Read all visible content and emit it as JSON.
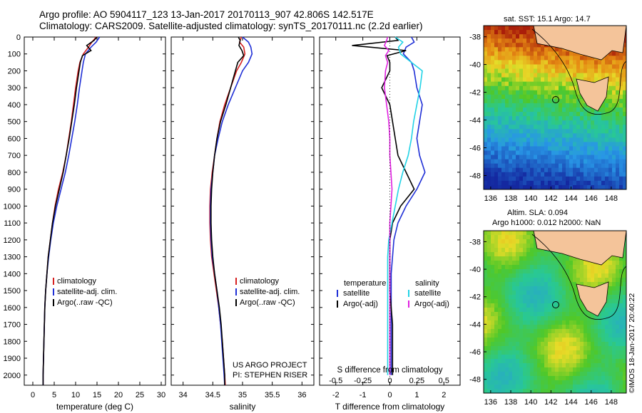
{
  "header": {
    "line1": "Argo profile: AO 5904117_123 13-Jan-2017 20170113_907 42.806S 142.517E",
    "line2": "Climatology: CARS2009. Satellite-adjusted climatology: synTS_20170111.nc (2.2d earlier)"
  },
  "colors": {
    "climatology": "#d62020",
    "satellite": "#1f2fd6",
    "argo": "#000000",
    "sat_salinity": "#22d3e6",
    "argo_salinity": "#e020e0"
  },
  "sst_map": {
    "title": "sat. SST: 15.1 Argo: 14.7"
  },
  "sla_map": {
    "title_line1": "Altim. SLA: 0.094",
    "title_line2": "Argo h1000: 0.012 h2000: NaN"
  },
  "map_axes": {
    "x_ticks": [
      "136",
      "138",
      "140",
      "142",
      "144",
      "146",
      "148"
    ],
    "y_ticks": [
      "-38",
      "-40",
      "-42",
      "-44",
      "-46",
      "-48"
    ]
  },
  "credit": "©IMOS 18-Jan-2017 20:40:22",
  "project": {
    "line1": "US ARGO PROJECT",
    "line2": "PI: STEPHEN RISER"
  },
  "chart_data": [
    {
      "type": "line",
      "xlabel": "temperature (deg C)",
      "xlim": [
        -2,
        31
      ],
      "ylim": [
        2060,
        0
      ],
      "x_ticks": [
        "0",
        "5",
        "10",
        "15",
        "20",
        "25",
        "30"
      ],
      "y_ticks": [
        "0",
        "100",
        "200",
        "300",
        "400",
        "500",
        "600",
        "700",
        "800",
        "900",
        "1000",
        "1100",
        "1200",
        "1300",
        "1400",
        "1500",
        "1600",
        "1700",
        "1800",
        "1900",
        "2000"
      ],
      "legend": [
        "climatology",
        "satellite-adj. clim.",
        "Argo(..raw -QC)"
      ],
      "series": [
        {
          "name": "climatology",
          "depth": [
            0,
            30,
            60,
            100,
            150,
            200,
            300,
            400,
            500,
            600,
            700,
            800,
            900,
            1000,
            1100,
            1200,
            1300,
            1400,
            1500,
            1600,
            1700,
            1800,
            1900,
            2000,
            2060
          ],
          "values": [
            14.8,
            13.8,
            13.0,
            11.8,
            11.0,
            10.6,
            10.0,
            9.5,
            9.0,
            8.4,
            7.8,
            7.0,
            6.0,
            5.2,
            4.6,
            4.1,
            3.6,
            3.3,
            3.0,
            2.8,
            2.7,
            2.6,
            2.5,
            2.4,
            2.4
          ]
        },
        {
          "name": "satellite-adj. clim.",
          "depth": [
            0,
            30,
            60,
            100,
            150,
            200,
            300,
            400,
            500,
            600,
            700,
            800,
            900,
            1000,
            1100,
            1200,
            1300,
            1400,
            1500,
            1600,
            1700,
            1800,
            1900,
            2000,
            2060
          ],
          "values": [
            15.6,
            14.8,
            13.6,
            12.3,
            11.8,
            11.5,
            10.9,
            10.4,
            9.8,
            9.1,
            8.4,
            7.6,
            6.6,
            5.6,
            4.8,
            4.2,
            3.7,
            3.3,
            3.0,
            2.8,
            2.7,
            2.6,
            2.5,
            2.4,
            2.4
          ]
        },
        {
          "name": "Argo(..raw -QC)",
          "depth": [
            0,
            20,
            50,
            80,
            110,
            150,
            200,
            300,
            400,
            500,
            600,
            700,
            800,
            900,
            1000,
            1100,
            1200,
            1300,
            1400,
            1500,
            1600,
            1700,
            1800,
            1900,
            2000,
            2060
          ],
          "values": [
            15.0,
            14.3,
            12.6,
            13.6,
            11.6,
            11.1,
            10.8,
            10.2,
            9.7,
            9.1,
            8.5,
            7.8,
            7.1,
            6.2,
            5.3,
            4.6,
            4.1,
            3.6,
            3.3,
            3.0,
            2.8,
            2.7,
            2.6,
            2.5,
            2.4,
            2.4
          ]
        }
      ]
    },
    {
      "type": "line",
      "xlabel": "salinity",
      "xlim": [
        33.8,
        36.2
      ],
      "ylim": [
        2060,
        0
      ],
      "x_ticks": [
        "34",
        "34.5",
        "35",
        "35.5",
        "36"
      ],
      "legend": [
        "climatology",
        "satellite-adj. clim.",
        "Argo(..raw -QC)"
      ],
      "series": [
        {
          "name": "climatology",
          "depth": [
            0,
            30,
            60,
            100,
            150,
            200,
            300,
            400,
            500,
            600,
            700,
            800,
            900,
            1000,
            1100,
            1200,
            1300,
            1400,
            1500,
            1600,
            1700,
            1800,
            1900,
            2000,
            2060
          ],
          "values": [
            34.98,
            34.95,
            35.02,
            35.04,
            34.98,
            34.9,
            34.8,
            34.7,
            34.62,
            34.57,
            34.53,
            34.49,
            34.46,
            34.45,
            34.45,
            34.46,
            34.48,
            34.52,
            34.56,
            34.6,
            34.63,
            34.66,
            34.68,
            34.7,
            34.71
          ]
        },
        {
          "name": "satellite-adj. clim.",
          "depth": [
            0,
            30,
            60,
            100,
            150,
            200,
            300,
            400,
            500,
            600,
            700,
            800,
            900,
            1000,
            1100,
            1200,
            1300,
            1400,
            1500,
            1600,
            1700,
            1800,
            1900,
            2000,
            2060
          ],
          "values": [
            35.0,
            35.1,
            35.14,
            35.16,
            35.1,
            35.0,
            34.88,
            34.76,
            34.66,
            34.59,
            34.53,
            34.5,
            34.47,
            34.46,
            34.46,
            34.47,
            34.49,
            34.53,
            34.57,
            34.6,
            34.63,
            34.65,
            34.67,
            34.69,
            34.7
          ]
        },
        {
          "name": "Argo(..raw -QC)",
          "depth": [
            0,
            20,
            50,
            80,
            110,
            150,
            200,
            300,
            400,
            500,
            600,
            700,
            800,
            900,
            1000,
            1100,
            1200,
            1300,
            1400,
            1500,
            1600,
            1700,
            1800,
            1900,
            2000,
            2060
          ],
          "values": [
            34.93,
            34.96,
            34.94,
            34.99,
            35.02,
            34.92,
            34.88,
            34.8,
            34.72,
            34.63,
            34.57,
            34.53,
            34.5,
            34.48,
            34.47,
            34.47,
            34.48,
            34.5,
            34.53,
            34.57,
            34.61,
            34.64,
            34.66,
            34.68,
            34.7,
            34.7
          ]
        }
      ]
    },
    {
      "type": "line",
      "xlabel": "T difference from climatology",
      "top_xlabel": "S difference from climatology",
      "xlim": [
        -2.6,
        2.6
      ],
      "ylim": [
        2060,
        0
      ],
      "x_ticks": [
        "-2",
        "-1",
        "0",
        "1",
        "2"
      ],
      "top_x_ticks": [
        "-0.5",
        "-0.25",
        "0",
        "0.25",
        "0.5"
      ],
      "legend_titles": [
        "temperature",
        "salinity"
      ],
      "legend": [
        "satellite",
        "Argo(-adj)",
        "satellite",
        "Argo(-adj)"
      ],
      "series": [
        {
          "name": "satellite",
          "depth": [
            0,
            30,
            60,
            100,
            150,
            200,
            300,
            400,
            500,
            600,
            700,
            800,
            900,
            1000,
            1100,
            1200,
            1300,
            1400,
            1500,
            1600,
            1700,
            1800,
            1900,
            2000
          ],
          "values": [
            0.8,
            0.9,
            0.6,
            0.5,
            0.8,
            0.9,
            1.0,
            1.2,
            1.1,
            1.0,
            1.1,
            1.3,
            1.0,
            0.6,
            0.3,
            0.15,
            0.1,
            0.05,
            0.05,
            0.05,
            0.05,
            0.05,
            0.05,
            0.05
          ]
        },
        {
          "name": "Argo(-adj)",
          "depth": [
            0,
            20,
            50,
            80,
            110,
            150,
            200,
            300,
            400,
            500,
            600,
            700,
            800,
            900,
            1000,
            1100,
            1200,
            1300,
            1400,
            1500,
            1600,
            1700,
            1800,
            1900,
            2000
          ],
          "values": [
            0.2,
            0.3,
            -1.4,
            0.6,
            -0.1,
            0.0,
            0.0,
            -0.3,
            0.0,
            0.1,
            0.2,
            0.3,
            0.6,
            0.9,
            0.4,
            0.1,
            0.0,
            0.0,
            0.0,
            0.0,
            0.05,
            0.1,
            0.1,
            0.1,
            0.1
          ]
        },
        {
          "name": "satellite",
          "depth": [
            0,
            30,
            60,
            100,
            150,
            200,
            300,
            400,
            500,
            600,
            700,
            800,
            900,
            1000,
            1100,
            1200,
            1300,
            1400,
            1500,
            1600,
            1700,
            1800,
            1900,
            2000
          ],
          "values": [
            0.05,
            0.12,
            0.08,
            0.1,
            0.2,
            0.3,
            0.28,
            0.25,
            0.22,
            0.2,
            0.17,
            0.12,
            0.08,
            0.05,
            0.02,
            -0.01,
            -0.02,
            -0.02,
            -0.02,
            -0.02,
            -0.02,
            -0.02,
            -0.02,
            -0.02
          ]
        },
        {
          "name": "Argo(-adj)",
          "depth": [
            0,
            20,
            50,
            80,
            110,
            150,
            200,
            300,
            400,
            500,
            600,
            700,
            800,
            900,
            1000,
            1100,
            1200,
            1300,
            1400,
            1500,
            1600,
            1700,
            1800,
            1900,
            2000
          ],
          "values": [
            -0.02,
            -0.03,
            -0.05,
            -0.01,
            -0.04,
            -0.02,
            -0.04,
            -0.05,
            -0.03,
            -0.01,
            0.0,
            0.0,
            0.01,
            0.02,
            0.01,
            0.0,
            0.0,
            0.0,
            0.0,
            0.0,
            0.0,
            0.0,
            0.0,
            0.0,
            0.0
          ]
        }
      ]
    }
  ]
}
